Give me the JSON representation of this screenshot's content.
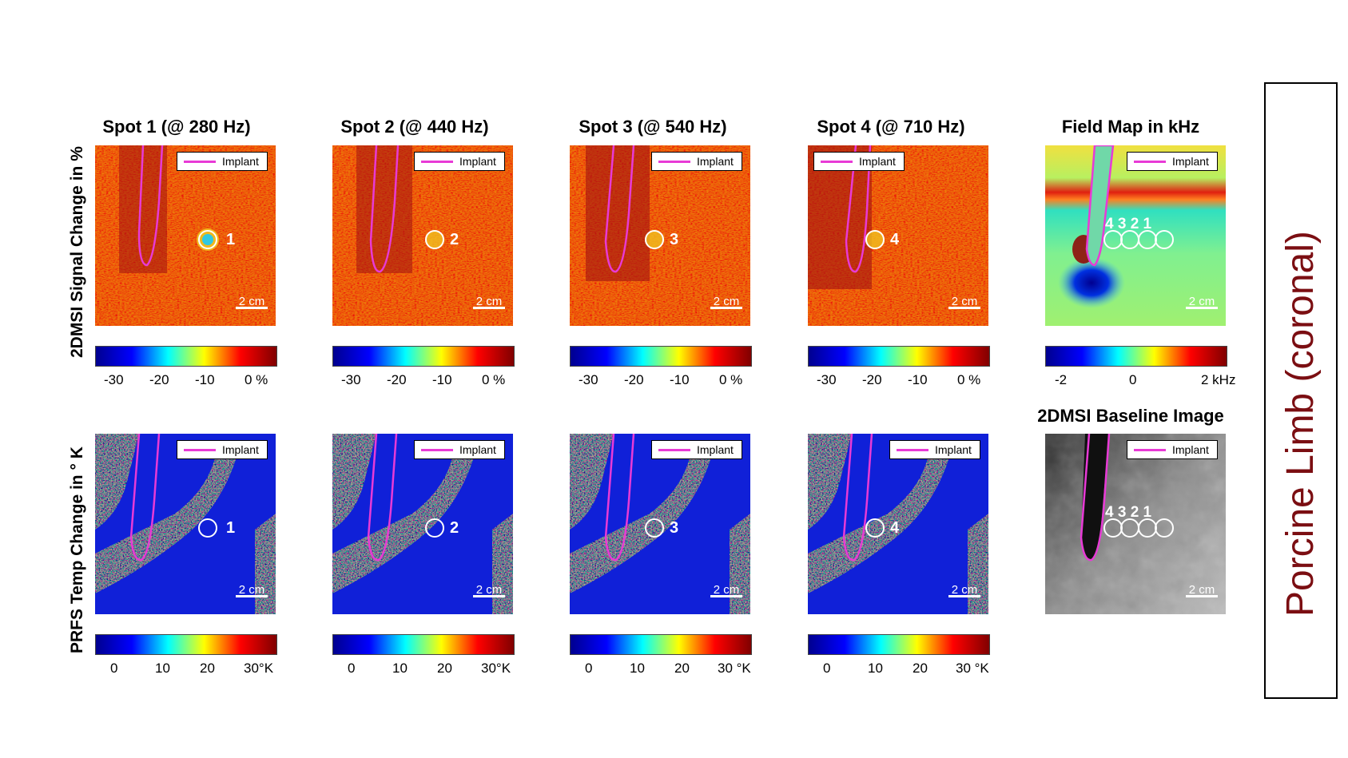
{
  "row_labels": {
    "top": "2DMSI Signal Change in %",
    "bottom": "PRFS Temp Change in ° K"
  },
  "panel_titles": [
    "Spot 1 (@ 280 Hz)",
    "Spot 2 (@ 440 Hz)",
    "Spot 3 (@ 540 Hz)",
    "Spot 4 (@ 710 Hz)",
    "Field Map in kHz"
  ],
  "baseline_title": "2DMSI Baseline Image",
  "legend_label": "Implant",
  "scale_label": "2 cm",
  "spot_numbers": [
    "1",
    "2",
    "3",
    "4"
  ],
  "field_spot_labels": "4 3 2 1",
  "colorbar_ticks": {
    "signal": [
      "-30",
      "-20",
      "-10",
      "0 %"
    ],
    "field": [
      "-2",
      "0",
      "2 kHz"
    ],
    "temp_1": [
      "0",
      "10",
      "20",
      "30°K"
    ],
    "temp_2": [
      "0",
      "10",
      "20",
      "30°K"
    ],
    "temp_3": [
      "0",
      "10",
      "20",
      "30 °K"
    ],
    "temp_4": [
      "0",
      "10",
      "20",
      "30 °K"
    ]
  },
  "side_label": "Porcine Limb (coronal)",
  "colors": {
    "implant": "#e83ad6",
    "jet_red": "#e8241a",
    "jet_blue": "#1020d8",
    "side_label": "#7b0e12"
  }
}
